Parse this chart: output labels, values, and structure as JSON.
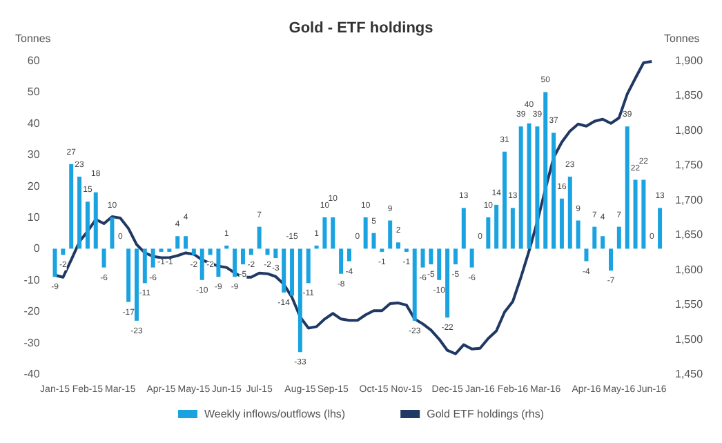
{
  "chart_data": {
    "type": "bar",
    "title": "Gold - ETF holdings",
    "ylabel": "Tonnes",
    "y2label": "Tonnes",
    "categories": [
      "Jan-15",
      null,
      null,
      null,
      "Feb-15",
      null,
      null,
      null,
      "Mar-15",
      null,
      null,
      null,
      null,
      "Apr-15",
      null,
      null,
      null,
      "May-15",
      null,
      null,
      null,
      "Jun-15",
      null,
      null,
      null,
      "Jul-15",
      null,
      null,
      null,
      null,
      "Aug-15",
      null,
      null,
      null,
      "Sep-15",
      null,
      null,
      null,
      null,
      "Oct-15",
      null,
      null,
      null,
      "Nov-15",
      null,
      null,
      null,
      null,
      "Dec-15",
      null,
      null,
      null,
      "Jan-16",
      null,
      null,
      null,
      "Feb-16",
      null,
      null,
      null,
      "Mar-16",
      null,
      null,
      null,
      null,
      "Apr-16",
      null,
      null,
      null,
      "May-16",
      null,
      null,
      null,
      "Jun-16",
      null
    ],
    "series": [
      {
        "name": "Weekly inflows/outflows (lhs)",
        "color": "#1aa3e0",
        "values": [
          -9,
          -2,
          27,
          23,
          15,
          18,
          -6,
          10,
          0,
          -17,
          -23,
          -11,
          -6,
          -1,
          -1,
          4,
          4,
          -2,
          -10,
          -2,
          -9,
          1,
          -9,
          -5,
          -2,
          7,
          -2,
          -3,
          -14,
          -15,
          -33,
          -11,
          1,
          10,
          10,
          -8,
          -4,
          0,
          10,
          5,
          -1,
          9,
          2,
          -1,
          -23,
          -6,
          -5,
          -10,
          -22,
          -5,
          13,
          -6,
          0,
          10,
          14,
          31,
          13,
          39,
          40,
          39,
          50,
          37,
          16,
          23,
          9,
          -4,
          7,
          4,
          -7,
          7,
          39,
          22,
          22,
          0,
          13
        ],
        "value_labels": [
          "-9",
          "-2",
          "27",
          "23",
          "15",
          "18",
          "-6",
          "10",
          "0",
          "-17",
          "-23",
          "-11",
          "-6",
          "-1",
          "-1",
          "4",
          "4",
          "-2",
          "-10",
          "-2",
          "-9",
          "1",
          "-9",
          "-5",
          "-2",
          "7",
          "-2",
          "-3",
          "-14",
          "-15",
          "-33",
          "-11",
          "1",
          "10",
          "10",
          "-8",
          "-4",
          "0",
          "10",
          "5",
          "-1",
          "9",
          "2",
          "-1",
          "-23",
          "-6",
          "-5",
          "-10",
          "-22",
          "-5",
          "13",
          "-6",
          "0",
          "10",
          "14",
          "31",
          "13",
          "39",
          "40",
          "39",
          "50",
          "37",
          "16",
          "23",
          "9",
          "-4",
          "7",
          "4",
          "-7",
          "7",
          "39",
          "22",
          "22",
          "0",
          "13"
        ]
      },
      {
        "name": "Gold ETF holdings (rhs)",
        "type": "line",
        "axis": "y2",
        "color": "#1f3864",
        "values": [
          1592,
          1589,
          1614,
          1640,
          1655,
          1672,
          1666,
          1676,
          1674,
          1659,
          1636,
          1624,
          1619,
          1617,
          1617,
          1620,
          1624,
          1622,
          1614,
          1609,
          1605,
          1603,
          1595,
          1589,
          1589,
          1595,
          1594,
          1590,
          1579,
          1560,
          1532,
          1516,
          1518,
          1529,
          1537,
          1529,
          1527,
          1527,
          1535,
          1541,
          1541,
          1551,
          1552,
          1549,
          1529,
          1522,
          1513,
          1500,
          1484,
          1479,
          1492,
          1486,
          1487,
          1501,
          1512,
          1539,
          1554,
          1589,
          1627,
          1669,
          1716,
          1761,
          1783,
          1799,
          1809,
          1806,
          1813,
          1816,
          1810,
          1818,
          1852,
          1875,
          1897,
          1899,
          null
        ]
      }
    ],
    "ylim": [
      -40,
      60
    ],
    "yticks": [
      -40,
      -30,
      -20,
      -10,
      0,
      10,
      20,
      30,
      40,
      50,
      60
    ],
    "y2lim": [
      1450,
      1900
    ],
    "y2ticks": [
      {
        "value": 1450,
        "label": "1,450"
      },
      {
        "value": 1500,
        "label": "1,500"
      },
      {
        "value": 1550,
        "label": "1,550"
      },
      {
        "value": 1600,
        "label": "1,600"
      },
      {
        "value": 1650,
        "label": "1,650"
      },
      {
        "value": 1700,
        "label": "1,700"
      },
      {
        "value": 1750,
        "label": "1,750"
      },
      {
        "value": 1800,
        "label": "1,800"
      },
      {
        "value": 1850,
        "label": "1,850"
      },
      {
        "value": 1900,
        "label": "1,900"
      }
    ],
    "grid": false,
    "legend": "bottom"
  }
}
